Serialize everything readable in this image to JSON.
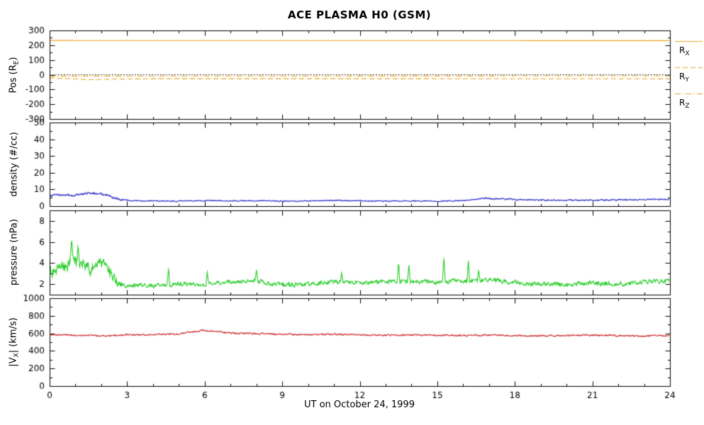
{
  "chart_data": {
    "type": "line",
    "title": "ACE PLASMA H0 (GSM)",
    "xlabel": "UT on October 24, 1999",
    "layout": {
      "grid": false,
      "legend_position": "right-of-first-panel",
      "stacked_panels": 4,
      "shared_x": true
    },
    "axis": {
      "xmin": 0,
      "xmax": 24,
      "xticks": [
        0,
        3,
        6,
        9,
        12,
        15,
        18,
        21,
        24
      ],
      "xminor": 1
    },
    "colors": {
      "frame": "#000000",
      "orbit": "#E9A421",
      "density": "#2222C8",
      "pressure": "#22CC22",
      "speed": "#CC2222",
      "zero_ref": "#000000"
    },
    "panels": [
      {
        "name": "position",
        "ylabel": {
          "pre": "Pos (R",
          "sub": "E",
          "post": ")"
        },
        "ylim": [
          -300,
          300
        ],
        "yticks": [
          -300,
          -200,
          -100,
          0,
          100,
          200,
          300
        ],
        "yminor": 50,
        "series": [
          {
            "name": "R_X",
            "color": "#E9A421",
            "style": "solid",
            "noise": 0,
            "points": [
              [
                0,
                232
              ],
              [
                24,
                231
              ]
            ]
          },
          {
            "name": "zero-reference",
            "color": "#000000",
            "style": "dot",
            "noise": 0,
            "points": [
              [
                0,
                0
              ],
              [
                24,
                0
              ]
            ]
          },
          {
            "name": "R_Z",
            "color": "#E9A421",
            "style": "dashdot",
            "noise": 0,
            "points": [
              [
                0,
                -9
              ],
              [
                24,
                -7
              ]
            ]
          },
          {
            "name": "R_Y",
            "color": "#E9A421",
            "style": "dash",
            "noise": 0,
            "points": [
              [
                0,
                -22
              ],
              [
                0.8,
                -27
              ],
              [
                1.6,
                -34
              ],
              [
                2.4,
                -30
              ],
              [
                4,
                -27
              ],
              [
                12,
                -27
              ],
              [
                24,
                -28
              ]
            ]
          }
        ],
        "legend": [
          {
            "pre": "R",
            "sub": "X",
            "style": "solid"
          },
          {
            "pre": "R",
            "sub": "Y",
            "style": "dash"
          },
          {
            "pre": "R",
            "sub": "Z",
            "style": "dashdot"
          }
        ]
      },
      {
        "name": "density",
        "ylabel": {
          "pre": "density (#/cc)",
          "sub": "",
          "post": ""
        },
        "ylim": [
          0,
          50
        ],
        "yticks": [
          0,
          10,
          20,
          30,
          40,
          50
        ],
        "yminor": 5,
        "series": [
          {
            "name": "proton-density",
            "color": "#2222C8",
            "style": "solid",
            "noise": [
              [
                0,
                0.55
              ],
              [
                2.5,
                0.55
              ],
              [
                3.2,
                0.25
              ],
              [
                16,
                0.25
              ],
              [
                17,
                0.35
              ],
              [
                24,
                0.3
              ]
            ],
            "points": [
              [
                0,
                6.2
              ],
              [
                0.4,
                6.8
              ],
              [
                0.8,
                6.3
              ],
              [
                1.2,
                7.0
              ],
              [
                1.6,
                7.8
              ],
              [
                1.9,
                7.3
              ],
              [
                2.2,
                6.8
              ],
              [
                2.5,
                5.0
              ],
              [
                2.8,
                3.6
              ],
              [
                3.2,
                3.2
              ],
              [
                4,
                3.1
              ],
              [
                5,
                3.0
              ],
              [
                6,
                3.4
              ],
              [
                7,
                3.1
              ],
              [
                8,
                3.3
              ],
              [
                9,
                3.0
              ],
              [
                10,
                3.1
              ],
              [
                11,
                3.4
              ],
              [
                12,
                3.2
              ],
              [
                13,
                3.0
              ],
              [
                14,
                3.1
              ],
              [
                15,
                3.0
              ],
              [
                16,
                3.3
              ],
              [
                16.8,
                4.7
              ],
              [
                17.3,
                4.4
              ],
              [
                18,
                3.9
              ],
              [
                19,
                3.7
              ],
              [
                20,
                3.5
              ],
              [
                21,
                3.6
              ],
              [
                22,
                3.8
              ],
              [
                23,
                3.9
              ],
              [
                24,
                4.1
              ]
            ]
          }
        ]
      },
      {
        "name": "pressure",
        "ylabel": {
          "pre": "pressure (nPa)",
          "sub": "",
          "post": ""
        },
        "ylim": [
          1,
          9
        ],
        "yticks": [
          2,
          4,
          6,
          8
        ],
        "yminor": 1,
        "series": [
          {
            "name": "flow-pressure",
            "color": "#22CC22",
            "style": "solid",
            "noise": [
              [
                0,
                0.45
              ],
              [
                2.4,
                0.45
              ],
              [
                2.8,
                0.15
              ],
              [
                24,
                0.17
              ]
            ],
            "points": [
              [
                0,
                3.2
              ],
              [
                0.5,
                3.5
              ],
              [
                0.8,
                4.0
              ],
              [
                1.0,
                4.2
              ],
              [
                1.3,
                3.8
              ],
              [
                1.6,
                3.6
              ],
              [
                2.0,
                3.8
              ],
              [
                2.3,
                3.2
              ],
              [
                2.6,
                2.1
              ],
              [
                3.0,
                1.8
              ],
              [
                3.5,
                1.9
              ],
              [
                4,
                1.8
              ],
              [
                5,
                2.0
              ],
              [
                6,
                2.0
              ],
              [
                7,
                2.2
              ],
              [
                8,
                2.3
              ],
              [
                9,
                1.9
              ],
              [
                10,
                2.0
              ],
              [
                11,
                2.2
              ],
              [
                12,
                2.1
              ],
              [
                13,
                2.2
              ],
              [
                14,
                2.3
              ],
              [
                15,
                2.2
              ],
              [
                16,
                2.3
              ],
              [
                17,
                2.4
              ],
              [
                18,
                2.2
              ],
              [
                19,
                2.0
              ],
              [
                20,
                2.0
              ],
              [
                21,
                2.1
              ],
              [
                22,
                2.0
              ],
              [
                23,
                2.2
              ],
              [
                24,
                2.4
              ]
            ],
            "spikes": [
              {
                "x": 0.85,
                "y": 6.3
              },
              {
                "x": 1.1,
                "y": 5.6
              },
              {
                "x": 4.6,
                "y": 3.6
              },
              {
                "x": 6.1,
                "y": 3.2
              },
              {
                "x": 8.0,
                "y": 3.4
              },
              {
                "x": 11.3,
                "y": 3.1
              },
              {
                "x": 13.5,
                "y": 4.2
              },
              {
                "x": 13.9,
                "y": 3.9
              },
              {
                "x": 15.25,
                "y": 4.7
              },
              {
                "x": 16.2,
                "y": 4.2
              },
              {
                "x": 16.6,
                "y": 3.4
              }
            ]
          }
        ]
      },
      {
        "name": "speed",
        "ylabel": {
          "pre": "|V",
          "sub": "X",
          "post": "| (km/s)"
        },
        "ylim": [
          0,
          1000
        ],
        "yticks": [
          0,
          200,
          400,
          600,
          800,
          1000
        ],
        "yminor": 100,
        "series": [
          {
            "name": "vx-magnitude",
            "color": "#CC2222",
            "style": "solid",
            "noise": 7,
            "points": [
              [
                0,
                585
              ],
              [
                0.5,
                582
              ],
              [
                1,
                578
              ],
              [
                1.5,
                575
              ],
              [
                2,
                572
              ],
              [
                2.5,
                578
              ],
              [
                3,
                585
              ],
              [
                3.5,
                582
              ],
              [
                4,
                588
              ],
              [
                4.5,
                585
              ],
              [
                5,
                595
              ],
              [
                5.5,
                615
              ],
              [
                5.9,
                635
              ],
              [
                6.3,
                625
              ],
              [
                6.8,
                610
              ],
              [
                7.3,
                600
              ],
              [
                8,
                598
              ],
              [
                9,
                588
              ],
              [
                10,
                584
              ],
              [
                11,
                590
              ],
              [
                12,
                584
              ],
              [
                13,
                578
              ],
              [
                14,
                583
              ],
              [
                15,
                578
              ],
              [
                16,
                574
              ],
              [
                17,
                580
              ],
              [
                18,
                574
              ],
              [
                19,
                570
              ],
              [
                20,
                576
              ],
              [
                21,
                580
              ],
              [
                22,
                574
              ],
              [
                23,
                570
              ],
              [
                24,
                576
              ]
            ]
          }
        ]
      }
    ]
  }
}
